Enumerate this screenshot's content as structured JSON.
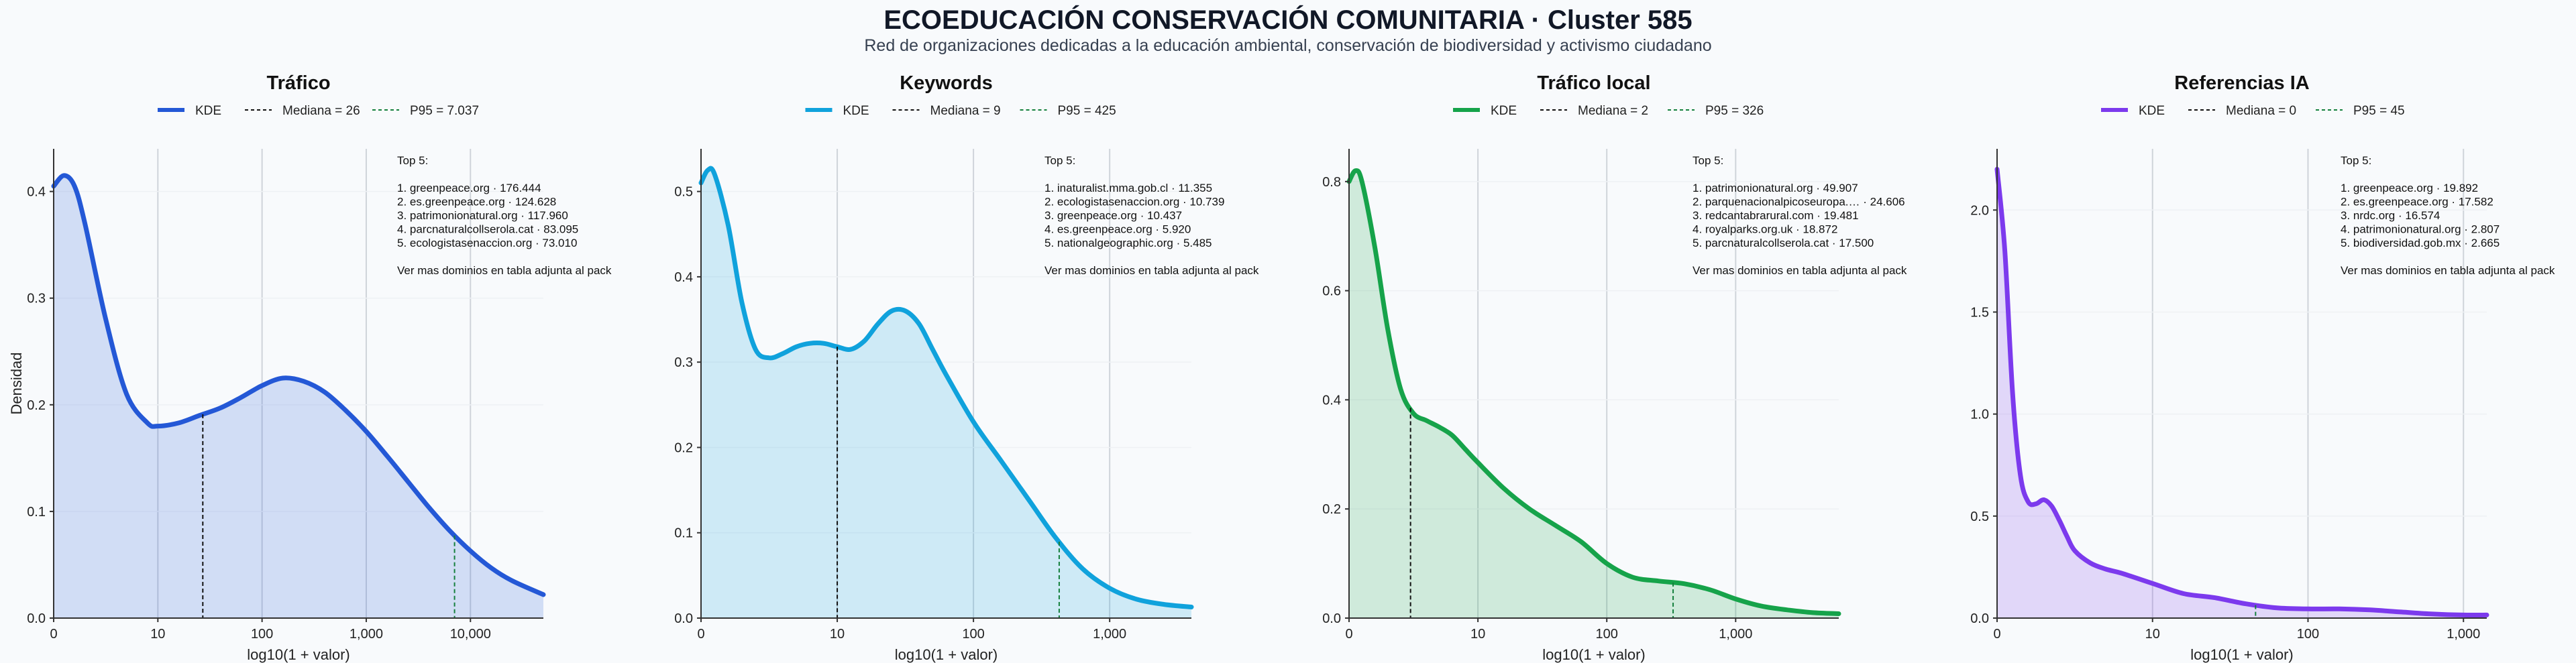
{
  "header": {
    "title": "ECOEDUCACIÓN CONSERVACIÓN COMUNITARIA · Cluster 585",
    "subtitle": "Red de organizaciones dedicadas a la educación ambiental, conservación de biodiversidad y activismo ciudadano"
  },
  "colors": {
    "trafico": "#2458d6",
    "keywords": "#10a2dc",
    "trafico_local": "#16a34a",
    "referencias_ia": "#7c3aed",
    "p95_line": "#15803d",
    "median_line": "#111111",
    "background": "#f8fafc"
  },
  "chart_data": [
    {
      "type": "area",
      "title": "Tráfico",
      "xlabel": "log10(1 + valor)",
      "ylabel": "Densidad",
      "x_scale": "log10(1+x)",
      "xlim": [
        0,
        4.7
      ],
      "ylim": [
        0,
        0.44
      ],
      "x_ticks": [
        "0",
        "10",
        "100",
        "1,000",
        "10,000"
      ],
      "y_ticks": [
        "0.0",
        "0.1",
        "0.2",
        "0.3",
        "0.4"
      ],
      "grid": "vertical",
      "legend_position": "top",
      "legend": [
        "KDE",
        "Mediana = 26",
        "P95 = 7.037"
      ],
      "median": 26,
      "p95": 7037,
      "series": [
        {
          "name": "KDE",
          "x": [
            0,
            0.1,
            0.2,
            0.3,
            0.5,
            0.7,
            0.9,
            1.0,
            1.2,
            1.4,
            1.6,
            1.8,
            2.0,
            2.2,
            2.4,
            2.6,
            2.8,
            3.0,
            3.2,
            3.4,
            3.6,
            3.8,
            4.0,
            4.2,
            4.4,
            4.7
          ],
          "y": [
            0.405,
            0.415,
            0.405,
            0.37,
            0.28,
            0.21,
            0.183,
            0.18,
            0.183,
            0.19,
            0.197,
            0.207,
            0.218,
            0.225,
            0.222,
            0.212,
            0.195,
            0.175,
            0.152,
            0.128,
            0.104,
            0.082,
            0.063,
            0.047,
            0.035,
            0.022
          ]
        }
      ],
      "top_text": [
        "Top 5:",
        "",
        "1. greenpeace.org · 176.444",
        "2. es.greenpeace.org · 124.628",
        "3. patrimonionatural.org · 117.960",
        "4. parcnaturalcollserola.cat · 83.095",
        "5. ecologistasenaccion.org · 73.010",
        "",
        "Ver mas dominios en tabla adjunta al pack"
      ]
    },
    {
      "type": "area",
      "title": "Keywords",
      "xlabel": "log10(1 + valor)",
      "ylabel": "",
      "x_scale": "log10(1+x)",
      "xlim": [
        0,
        3.6
      ],
      "ylim": [
        0,
        0.55
      ],
      "x_ticks": [
        "0",
        "10",
        "100",
        "1,000"
      ],
      "y_ticks": [
        "0.0",
        "0.1",
        "0.2",
        "0.3",
        "0.4",
        "0.5"
      ],
      "grid": "vertical",
      "legend_position": "top",
      "legend": [
        "KDE",
        "Mediana = 9",
        "P95 = 425"
      ],
      "median": 9,
      "p95": 425,
      "series": [
        {
          "name": "KDE",
          "x": [
            0,
            0.05,
            0.1,
            0.2,
            0.3,
            0.4,
            0.5,
            0.6,
            0.7,
            0.8,
            0.9,
            1.0,
            1.1,
            1.2,
            1.3,
            1.4,
            1.5,
            1.6,
            1.7,
            1.8,
            2.0,
            2.2,
            2.4,
            2.6,
            2.8,
            3.0,
            3.2,
            3.4,
            3.6
          ],
          "y": [
            0.51,
            0.525,
            0.52,
            0.46,
            0.37,
            0.315,
            0.305,
            0.31,
            0.318,
            0.322,
            0.322,
            0.318,
            0.315,
            0.325,
            0.345,
            0.36,
            0.36,
            0.345,
            0.315,
            0.285,
            0.23,
            0.185,
            0.14,
            0.095,
            0.058,
            0.035,
            0.022,
            0.016,
            0.013
          ]
        }
      ],
      "top_text": [
        "Top 5:",
        "",
        "1. inaturalist.mma.gob.cl · 11.355",
        "2. ecologistasenaccion.org · 10.739",
        "3. greenpeace.org · 10.437",
        "4. es.greenpeace.org · 5.920",
        "5. nationalgeographic.org · 5.485",
        "",
        "Ver mas dominios en tabla adjunta al pack"
      ]
    },
    {
      "type": "area",
      "title": "Tráfico local",
      "xlabel": "log10(1 + valor)",
      "ylabel": "",
      "x_scale": "log10(1+x)",
      "xlim": [
        0,
        3.8
      ],
      "ylim": [
        0,
        0.86
      ],
      "x_ticks": [
        "0",
        "10",
        "100",
        "1,000"
      ],
      "y_ticks": [
        "0.0",
        "0.2",
        "0.4",
        "0.6",
        "0.8"
      ],
      "grid": "vertical",
      "legend_position": "top",
      "legend": [
        "KDE",
        "Mediana = 2",
        "P95 = 326"
      ],
      "median": 2,
      "p95": 326,
      "series": [
        {
          "name": "KDE",
          "x": [
            0,
            0.05,
            0.1,
            0.2,
            0.3,
            0.4,
            0.5,
            0.6,
            0.7,
            0.8,
            0.9,
            1.0,
            1.2,
            1.4,
            1.6,
            1.8,
            2.0,
            2.2,
            2.4,
            2.6,
            2.8,
            3.0,
            3.2,
            3.4,
            3.6,
            3.8
          ],
          "y": [
            0.8,
            0.82,
            0.8,
            0.68,
            0.53,
            0.42,
            0.375,
            0.362,
            0.35,
            0.335,
            0.31,
            0.285,
            0.238,
            0.2,
            0.17,
            0.14,
            0.1,
            0.075,
            0.068,
            0.063,
            0.052,
            0.035,
            0.022,
            0.015,
            0.01,
            0.008
          ]
        }
      ],
      "top_text": [
        "Top 5:",
        "",
        "1. patrimonionatural.org · 49.907",
        "2. parquenacionalpicoseuropa.… · 24.606",
        "3. redcantabrarural.com · 19.481",
        "4. royalparks.org.uk · 18.872",
        "5. parcnaturalcollserola.cat · 17.500",
        "",
        "Ver mas dominios en tabla adjunta al pack"
      ]
    },
    {
      "type": "area",
      "title": "Referencias IA",
      "xlabel": "log10(1 + valor)",
      "ylabel": "",
      "x_scale": "log10(1+x)",
      "xlim": [
        0,
        3.15
      ],
      "ylim": [
        0,
        2.3
      ],
      "x_ticks": [
        "0",
        "10",
        "100",
        "1,000"
      ],
      "y_ticks": [
        "0.0",
        "0.5",
        "1.0",
        "1.5",
        "2.0"
      ],
      "grid": "vertical",
      "legend_position": "top",
      "legend": [
        "KDE",
        "Mediana = 0",
        "P95 = 45"
      ],
      "median": 0,
      "p95": 45,
      "series": [
        {
          "name": "KDE",
          "x": [
            0,
            0.05,
            0.1,
            0.15,
            0.2,
            0.25,
            0.3,
            0.35,
            0.4,
            0.45,
            0.5,
            0.6,
            0.7,
            0.8,
            1.0,
            1.2,
            1.4,
            1.6,
            1.8,
            2.0,
            2.2,
            2.4,
            2.6,
            2.8,
            3.0,
            3.15
          ],
          "y": [
            2.2,
            1.8,
            1.1,
            0.7,
            0.57,
            0.56,
            0.58,
            0.55,
            0.48,
            0.4,
            0.33,
            0.27,
            0.24,
            0.22,
            0.17,
            0.12,
            0.1,
            0.07,
            0.05,
            0.045,
            0.045,
            0.04,
            0.03,
            0.02,
            0.015,
            0.015
          ]
        }
      ],
      "top_text": [
        "Top 5:",
        "",
        "1. greenpeace.org · 19.892",
        "2. es.greenpeace.org · 17.582",
        "3. nrdc.org · 16.574",
        "4. patrimonionatural.org · 2.807",
        "5. biodiversidad.gob.mx · 2.665",
        "",
        "Ver mas dominios en tabla adjunta al pack"
      ]
    }
  ]
}
